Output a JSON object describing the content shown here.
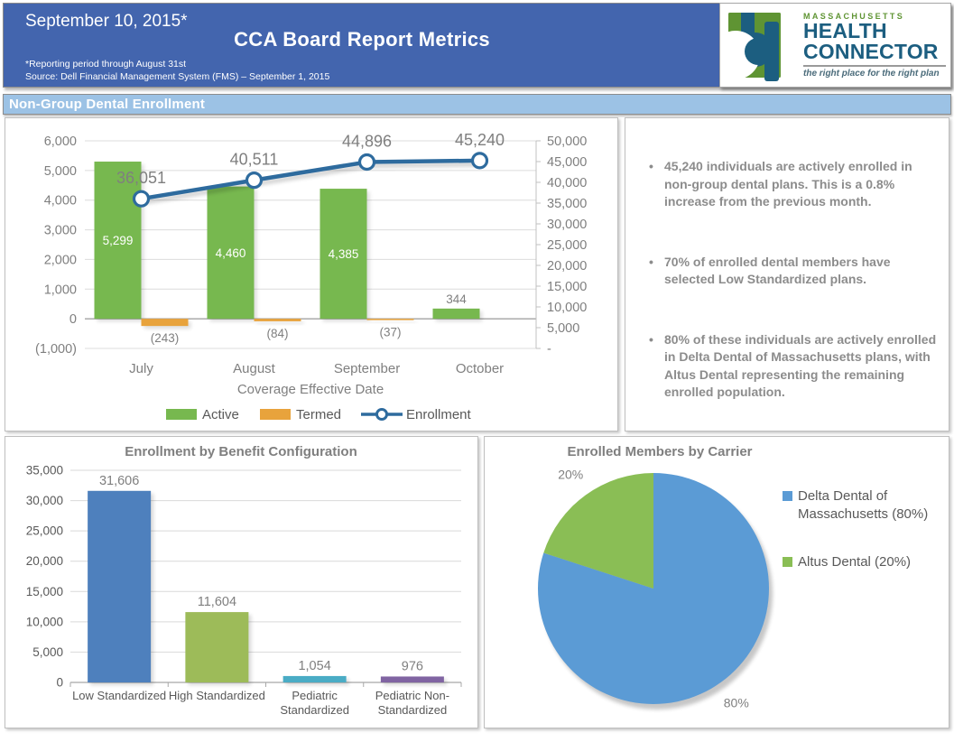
{
  "header": {
    "date": "September 10, 2015*",
    "title": "CCA Board Report Metrics",
    "note1": "*Reporting period through August 31st",
    "note2": "Source: Dell Financial Management System (FMS) – September 1, 2015",
    "logo": {
      "region": "MASSACHUSETTS",
      "name_line1": "HEALTH",
      "name_line2": "CONNECTOR",
      "tagline": "the right place for the right plan"
    }
  },
  "section": {
    "title": "Non-Group Dental Enrollment"
  },
  "bullets": [
    "45,240 individuals are actively enrolled in non-group dental plans. This is a 0.8% increase from the previous month.",
    "70% of enrolled dental members have selected Low Standardized plans.",
    "80% of these individuals are actively enrolled in Delta Dental of Massachusetts plans, with Altus Dental representing the remaining enrolled population."
  ],
  "colors": {
    "header_blue": "#4365AE",
    "section_blue": "#9CC2E5",
    "logo_green": "#5F9433",
    "logo_blue": "#1C5E80",
    "active_green": "#77B84F",
    "termed_orange": "#E8A33C",
    "enrollment_line_blue": "#2E6B9E"
  },
  "chart_data": [
    {
      "type": "bar",
      "subtype": "combo-bar-line-dual-axis",
      "categories": [
        "July",
        "August",
        "September",
        "October"
      ],
      "xlabel": "Coverage Effective Date",
      "series": [
        {
          "name": "Active",
          "type": "bar",
          "axis": "left",
          "color": "#77B84F",
          "values": [
            5299,
            4460,
            4385,
            344
          ],
          "labels": [
            "5,299",
            "4,460",
            "4,385",
            "344"
          ]
        },
        {
          "name": "Termed",
          "type": "bar",
          "axis": "left",
          "color": "#E8A33C",
          "values": [
            -243,
            -84,
            -37,
            0
          ],
          "labels": [
            "(243)",
            "(84)",
            "(37)",
            ""
          ]
        },
        {
          "name": "Enrollment",
          "type": "line",
          "axis": "right",
          "color": "#2E6B9E",
          "values": [
            36051,
            40511,
            44896,
            45240
          ],
          "labels": [
            "36,051",
            "40,511",
            "44,896",
            "45,240"
          ]
        }
      ],
      "left_axis": {
        "min": -1000,
        "max": 6000,
        "step": 1000,
        "ticks": [
          "6,000",
          "5,000",
          "4,000",
          "3,000",
          "2,000",
          "1,000",
          "0",
          "(1,000)"
        ]
      },
      "right_axis": {
        "min": 0,
        "max": 50000,
        "step": 5000,
        "ticks": [
          "50,000",
          "45,000",
          "40,000",
          "35,000",
          "30,000",
          "25,000",
          "20,000",
          "15,000",
          "10,000",
          "5,000",
          "-"
        ]
      },
      "legend_position": "bottom",
      "grid": "horizontal"
    },
    {
      "type": "bar",
      "title": "Enrollment by Benefit Configuration",
      "categories": [
        "Low Standardized",
        "High Standardized",
        "Pediatric Standardized",
        "Pediatric Non-Standardized"
      ],
      "categories_wrapped": [
        [
          "Low Standardized"
        ],
        [
          "High Standardized"
        ],
        [
          "Pediatric",
          "Standardized"
        ],
        [
          "Pediatric Non-",
          "Standardized"
        ]
      ],
      "values": [
        31606,
        11604,
        1054,
        976
      ],
      "labels": [
        "31,606",
        "11,604",
        "1,054",
        "976"
      ],
      "colors": [
        "#4E80BD",
        "#9DBB59",
        "#4AACC5",
        "#8064A2"
      ],
      "ylim": [
        0,
        35000
      ],
      "ystep": 5000,
      "yticks": [
        "0",
        "5,000",
        "10,000",
        "15,000",
        "20,000",
        "25,000",
        "30,000",
        "35,000"
      ],
      "grid": "horizontal"
    },
    {
      "type": "pie",
      "title": "Enrolled Members by Carrier",
      "slices": [
        {
          "label": "Delta Dental of Massachusetts (80%)",
          "value": 80,
          "color": "#5B9BD5",
          "callout": "80%"
        },
        {
          "label": "Altus Dental (20%)",
          "value": 20,
          "color": "#8ABE55",
          "callout": "20%"
        }
      ],
      "start_angle_deg": 0,
      "direction": "clockwise",
      "legend_position": "right"
    }
  ]
}
